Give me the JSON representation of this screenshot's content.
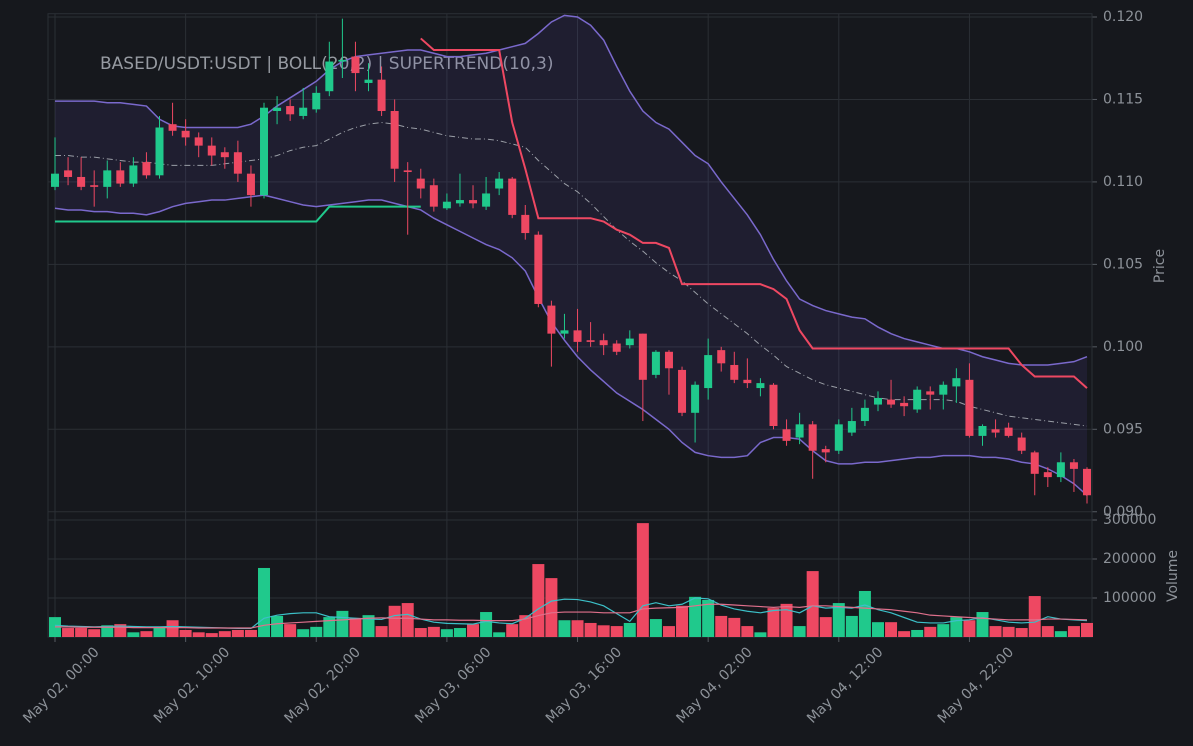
{
  "chart_data": {
    "type": "candlestick",
    "title": "BASED/USDT:USDT | BOLL(20,2) | SUPERTREND(10,3)",
    "ylabel": "Price",
    "categories": [
      "May 02, 00:00",
      null,
      null,
      null,
      null,
      null,
      null,
      null,
      null,
      null,
      "May 02, 10:00",
      null,
      null,
      null,
      null,
      null,
      null,
      null,
      null,
      null,
      "May 02, 20:00",
      null,
      null,
      null,
      null,
      null,
      null,
      null,
      null,
      null,
      "May 03, 06:00",
      null,
      null,
      null,
      null,
      null,
      null,
      null,
      null,
      null,
      "May 03, 16:00",
      null,
      null,
      null,
      null,
      null,
      null,
      null,
      null,
      null,
      "May 04, 02:00",
      null,
      null,
      null,
      null,
      null,
      null,
      null,
      null,
      null,
      "May 04, 12:00",
      null,
      null,
      null,
      null,
      null,
      null,
      null,
      null,
      null,
      "May 04, 22:00",
      null,
      null,
      null,
      null,
      null,
      null,
      null,
      null,
      null
    ],
    "open": [
      0.1097,
      0.1107,
      0.1103,
      0.1098,
      0.1097,
      0.1107,
      0.1099,
      0.1112,
      0.1104,
      0.1135,
      0.1131,
      0.1127,
      0.1122,
      0.1118,
      0.1118,
      0.1105,
      0.1092,
      0.1143,
      0.1146,
      0.114,
      0.1144,
      0.1155,
      0.1173,
      0.1176,
      0.116,
      0.1162,
      0.1143,
      0.1107,
      0.1102,
      0.1098,
      0.1084,
      0.1087,
      0.1089,
      0.1085,
      0.1096,
      0.1102,
      0.108,
      0.1068,
      0.1025,
      0.1008,
      0.101,
      0.1004,
      0.1004,
      0.1002,
      0.1001,
      0.1008,
      0.0983,
      0.0997,
      0.0986,
      0.096,
      0.0975,
      0.0998,
      0.0989,
      0.098,
      0.0975,
      0.0977,
      0.095,
      0.0945,
      0.0953,
      0.0938,
      0.0937,
      0.0948,
      0.0955,
      0.0965,
      0.0968,
      0.0966,
      0.0962,
      0.0973,
      0.0971,
      0.0976,
      0.098,
      0.0946,
      0.095,
      0.0951,
      0.0945,
      0.0936,
      0.0924,
      0.0921,
      0.093,
      0.0926
    ],
    "high": [
      0.1127,
      0.1115,
      0.1115,
      0.1107,
      0.1113,
      0.1112,
      0.1115,
      0.1118,
      0.114,
      0.1148,
      0.1138,
      0.113,
      0.1127,
      0.1121,
      0.1125,
      0.111,
      0.1148,
      0.1152,
      0.115,
      0.1157,
      0.1158,
      0.1185,
      0.1199,
      0.1185,
      0.1172,
      0.117,
      0.115,
      0.1112,
      0.1108,
      0.1102,
      0.1093,
      0.1105,
      0.1098,
      0.1103,
      0.1106,
      0.1103,
      0.1086,
      0.107,
      0.1028,
      0.102,
      0.1023,
      0.1015,
      0.1008,
      0.1004,
      0.101,
      0.1008,
      0.0998,
      0.0998,
      0.0988,
      0.0979,
      0.1005,
      0.1,
      0.0997,
      0.0993,
      0.0981,
      0.0978,
      0.0956,
      0.096,
      0.0955,
      0.094,
      0.0956,
      0.0963,
      0.0968,
      0.0973,
      0.098,
      0.097,
      0.0976,
      0.0976,
      0.0979,
      0.0987,
      0.099,
      0.0953,
      0.0956,
      0.0954,
      0.0948,
      0.0937,
      0.0927,
      0.0936,
      0.0932,
      0.0927
    ],
    "low": [
      0.1095,
      0.1098,
      0.1095,
      0.1085,
      0.109,
      0.1097,
      0.1097,
      0.1102,
      0.1102,
      0.1128,
      0.1122,
      0.1115,
      0.111,
      0.1108,
      0.11,
      0.1085,
      0.109,
      0.1135,
      0.1137,
      0.1138,
      0.1142,
      0.1152,
      0.1163,
      0.1155,
      0.1155,
      0.114,
      0.11,
      0.1068,
      0.109,
      0.1082,
      0.1083,
      0.1085,
      0.1084,
      0.1083,
      0.1092,
      0.1078,
      0.1065,
      0.1024,
      0.0988,
      0.1005,
      0.0997,
      0.1,
      0.0995,
      0.0995,
      0.0999,
      0.0955,
      0.0981,
      0.0971,
      0.0958,
      0.0942,
      0.0968,
      0.0985,
      0.0978,
      0.0975,
      0.097,
      0.095,
      0.094,
      0.0941,
      0.092,
      0.093,
      0.0935,
      0.0946,
      0.0952,
      0.0961,
      0.0963,
      0.0958,
      0.096,
      0.0962,
      0.0962,
      0.0966,
      0.0945,
      0.094,
      0.0945,
      0.0945,
      0.0935,
      0.091,
      0.0915,
      0.0918,
      0.0912,
      0.0905
    ],
    "close": [
      0.1105,
      0.1103,
      0.1097,
      0.1097,
      0.1107,
      0.1099,
      0.111,
      0.1104,
      0.1133,
      0.1131,
      0.1127,
      0.1122,
      0.1116,
      0.1115,
      0.1105,
      0.1092,
      0.1145,
      0.1145,
      0.1141,
      0.1145,
      0.1154,
      0.1173,
      0.1174,
      0.1166,
      0.1162,
      0.1143,
      0.1108,
      0.1106,
      0.1096,
      0.1085,
      0.1088,
      0.1089,
      0.1087,
      0.1093,
      0.1102,
      0.108,
      0.1069,
      0.1026,
      0.1008,
      0.101,
      0.1003,
      0.1003,
      0.1001,
      0.0997,
      0.1005,
      0.098,
      0.0997,
      0.0987,
      0.096,
      0.0977,
      0.0995,
      0.099,
      0.098,
      0.0978,
      0.0978,
      0.0952,
      0.0943,
      0.0953,
      0.0937,
      0.0936,
      0.0953,
      0.0955,
      0.0963,
      0.0969,
      0.0965,
      0.0964,
      0.0974,
      0.0971,
      0.0977,
      0.0981,
      0.0946,
      0.0952,
      0.0948,
      0.0946,
      0.0937,
      0.0923,
      0.0921,
      0.093,
      0.0926,
      0.091
    ],
    "bb_upper": [
      0.1149,
      0.1149,
      0.1149,
      0.1149,
      0.1148,
      0.1148,
      0.1147,
      0.1146,
      0.1138,
      0.1134,
      0.1133,
      0.1133,
      0.1133,
      0.1133,
      0.1133,
      0.1135,
      0.114,
      0.1146,
      0.1151,
      0.1156,
      0.1161,
      0.1168,
      0.1173,
      0.1176,
      0.1177,
      0.1178,
      0.1179,
      0.118,
      0.118,
      0.1178,
      0.1176,
      0.1176,
      0.1177,
      0.1178,
      0.118,
      0.1182,
      0.1184,
      0.119,
      0.1197,
      0.1201,
      0.12,
      0.1195,
      0.1186,
      0.117,
      0.1155,
      0.1143,
      0.1136,
      0.1132,
      0.1124,
      0.1116,
      0.1111,
      0.11,
      0.109,
      0.108,
      0.1068,
      0.1053,
      0.104,
      0.1029,
      0.1025,
      0.1022,
      0.102,
      0.1018,
      0.1017,
      0.1012,
      0.1008,
      0.1005,
      0.1003,
      0.1001,
      0.0999,
      0.0999,
      0.0997,
      0.0994,
      0.0992,
      0.099,
      0.0989,
      0.0989,
      0.0989,
      0.099,
      0.0991,
      0.0994
    ],
    "bb_middle": [
      0.1116,
      0.1116,
      0.1115,
      0.1115,
      0.1114,
      0.1113,
      0.1112,
      0.1112,
      0.1111,
      0.111,
      0.111,
      0.111,
      0.111,
      0.1111,
      0.1112,
      0.1113,
      0.1114,
      0.1116,
      0.1119,
      0.1121,
      0.1122,
      0.1126,
      0.113,
      0.1133,
      0.1135,
      0.1136,
      0.1135,
      0.1133,
      0.1132,
      0.113,
      0.1128,
      0.1127,
      0.1126,
      0.1126,
      0.1125,
      0.1123,
      0.1121,
      0.1113,
      0.1106,
      0.1099,
      0.1094,
      0.1087,
      0.1079,
      0.1071,
      0.1064,
      0.1058,
      0.1051,
      0.1045,
      0.104,
      0.1033,
      0.1026,
      0.102,
      0.1014,
      0.1008,
      0.1001,
      0.0995,
      0.0988,
      0.0984,
      0.098,
      0.0977,
      0.0975,
      0.0973,
      0.0971,
      0.0969,
      0.0968,
      0.0968,
      0.0968,
      0.0968,
      0.0968,
      0.0967,
      0.0964,
      0.0962,
      0.096,
      0.0958,
      0.0957,
      0.0956,
      0.0955,
      0.0954,
      0.0953,
      0.0952
    ],
    "bb_lower": [
      0.1084,
      0.1083,
      0.1083,
      0.1082,
      0.1082,
      0.1081,
      0.1081,
      0.108,
      0.1082,
      0.1085,
      0.1087,
      0.1088,
      0.1089,
      0.1089,
      0.109,
      0.1091,
      0.1092,
      0.109,
      0.1088,
      0.1086,
      0.1085,
      0.1086,
      0.1087,
      0.1088,
      0.1089,
      0.1089,
      0.1087,
      0.1085,
      0.1083,
      0.1078,
      0.1074,
      0.107,
      0.1066,
      0.1062,
      0.1059,
      0.1054,
      0.1046,
      0.103,
      0.1015,
      0.1004,
      0.0994,
      0.0986,
      0.0979,
      0.0972,
      0.0967,
      0.0962,
      0.0956,
      0.095,
      0.0942,
      0.0936,
      0.0934,
      0.0933,
      0.0933,
      0.0934,
      0.0942,
      0.0945,
      0.0945,
      0.0944,
      0.0937,
      0.0931,
      0.0929,
      0.0929,
      0.093,
      0.093,
      0.0931,
      0.0932,
      0.0933,
      0.0933,
      0.0934,
      0.0934,
      0.0934,
      0.0933,
      0.0933,
      0.0932,
      0.093,
      0.0929,
      0.0926,
      0.0922,
      0.0917,
      0.091
    ],
    "supertrend_up": [
      0.1076,
      0.1076,
      0.1076,
      0.1076,
      0.1076,
      0.1076,
      0.1076,
      0.1076,
      0.1076,
      0.1076,
      0.1076,
      0.1076,
      0.1076,
      0.1076,
      0.1076,
      0.1076,
      0.1076,
      0.1076,
      0.1076,
      0.1076,
      0.1076,
      0.1085,
      0.1085,
      0.1085,
      0.1085,
      0.1085,
      0.1085,
      0.1085,
      0.1085,
      null,
      null,
      null,
      null,
      null,
      null,
      null,
      null,
      null,
      null,
      null,
      null,
      null,
      null,
      null,
      null,
      null,
      null,
      null,
      null,
      null,
      null,
      null,
      null,
      null,
      null,
      null,
      null,
      null,
      null,
      null,
      null,
      null,
      null,
      null,
      null,
      null,
      null,
      null,
      null,
      null,
      null,
      null,
      null,
      null,
      null,
      null,
      null,
      null,
      null,
      null
    ],
    "supertrend_down": [
      null,
      null,
      null,
      null,
      null,
      null,
      null,
      null,
      null,
      null,
      null,
      null,
      null,
      null,
      null,
      null,
      null,
      null,
      null,
      null,
      null,
      null,
      null,
      null,
      null,
      null,
      null,
      null,
      0.1187,
      0.118,
      0.118,
      0.118,
      0.118,
      0.118,
      0.118,
      0.1136,
      0.1108,
      0.1078,
      0.1078,
      0.1078,
      0.1078,
      0.1078,
      0.1076,
      0.1071,
      0.1068,
      0.1063,
      0.1063,
      0.106,
      0.1038,
      0.1038,
      0.1038,
      0.1038,
      0.1038,
      0.1038,
      0.1038,
      0.1035,
      0.1029,
      0.101,
      0.0999,
      0.0999,
      0.0999,
      0.0999,
      0.0999,
      0.0999,
      0.0999,
      0.0999,
      0.0999,
      0.0999,
      0.0999,
      0.0999,
      0.0999,
      0.0999,
      0.0999,
      0.0999,
      0.0989,
      0.0982,
      0.0982,
      0.0982,
      0.0982,
      0.0975
    ],
    "ylim": [
      0.0895,
      0.1202
    ],
    "yticks": [
      {
        "value": 0.09,
        "label": "0.090"
      },
      0.095,
      {
        "value": 0.1,
        "label": "0.100"
      },
      0.105,
      {
        "value": 0.11,
        "label": "0.110"
      },
      0.115,
      {
        "value": 0.12,
        "label": "0.120"
      }
    ],
    "grid": true,
    "colors": {
      "up": "#20c98c",
      "down": "#ee4862",
      "bb": "#7a69cc",
      "bb_fill": "#5a4fb0",
      "bb_middle": "#9a9ea6",
      "supertrend_up": "#20c98c",
      "supertrend_down": "#ee4862",
      "volume_ma_a": "#3cc0c8",
      "volume_ma_b": "#e0708c"
    },
    "volume": {
      "ylabel": "Volume",
      "values": [
        51000,
        23000,
        23000,
        20000,
        30000,
        33000,
        12000,
        15000,
        26000,
        43000,
        18000,
        12000,
        10000,
        15000,
        18000,
        18000,
        177000,
        54000,
        33000,
        20000,
        26000,
        51000,
        67000,
        49000,
        56000,
        28000,
        80000,
        87000,
        23000,
        26000,
        20000,
        23000,
        33000,
        64000,
        12000,
        33000,
        56000,
        187000,
        151000,
        43000,
        43000,
        36000,
        30000,
        28000,
        36000,
        292000,
        46000,
        28000,
        80000,
        103000,
        95000,
        54000,
        49000,
        28000,
        12000,
        74000,
        85000,
        28000,
        169000,
        51000,
        87000,
        54000,
        118000,
        38000,
        38000,
        15000,
        18000,
        26000,
        33000,
        51000,
        43000,
        64000,
        28000,
        26000,
        23000,
        105000,
        28000,
        15000,
        28000,
        36000
      ],
      "ma_a": [
        30000,
        28000,
        27000,
        26000,
        27000,
        28000,
        27000,
        26000,
        26000,
        27000,
        26000,
        25000,
        24000,
        23000,
        22000,
        22000,
        48000,
        56000,
        60000,
        62000,
        62000,
        52000,
        50000,
        48000,
        46000,
        45000,
        55000,
        58000,
        46000,
        38000,
        35000,
        34000,
        33000,
        40000,
        36000,
        34000,
        48000,
        72000,
        92000,
        97000,
        96000,
        90000,
        80000,
        60000,
        40000,
        80000,
        88000,
        80000,
        84000,
        100000,
        98000,
        82000,
        72000,
        66000,
        62000,
        68000,
        70000,
        62000,
        80000,
        74000,
        76000,
        74000,
        82000,
        70000,
        62000,
        50000,
        38000,
        36000,
        36000,
        42000,
        44000,
        50000,
        44000,
        38000,
        36000,
        38000,
        52000,
        46000,
        44000,
        42000
      ],
      "ma_b": [
        26000,
        26000,
        25000,
        25000,
        25000,
        25000,
        24000,
        24000,
        24000,
        24000,
        24000,
        23000,
        23000,
        23000,
        23000,
        23000,
        30000,
        34000,
        36000,
        38000,
        40000,
        42000,
        44000,
        46000,
        48000,
        49000,
        48000,
        48000,
        46000,
        44000,
        44000,
        43000,
        43000,
        42000,
        42000,
        42000,
        46000,
        55000,
        62000,
        64000,
        64000,
        64000,
        62000,
        62000,
        62000,
        72000,
        74000,
        75000,
        76000,
        80000,
        84000,
        84000,
        82000,
        80000,
        78000,
        76000,
        78000,
        76000,
        80000,
        80000,
        78000,
        76000,
        74000,
        72000,
        70000,
        66000,
        62000,
        56000,
        54000,
        52000,
        50000,
        48000,
        46000,
        44000,
        44000,
        44000,
        46000,
        46000,
        45000,
        44000
      ],
      "ylim": [
        0,
        300000
      ],
      "yticks": [
        100000,
        200000,
        300000
      ]
    }
  }
}
